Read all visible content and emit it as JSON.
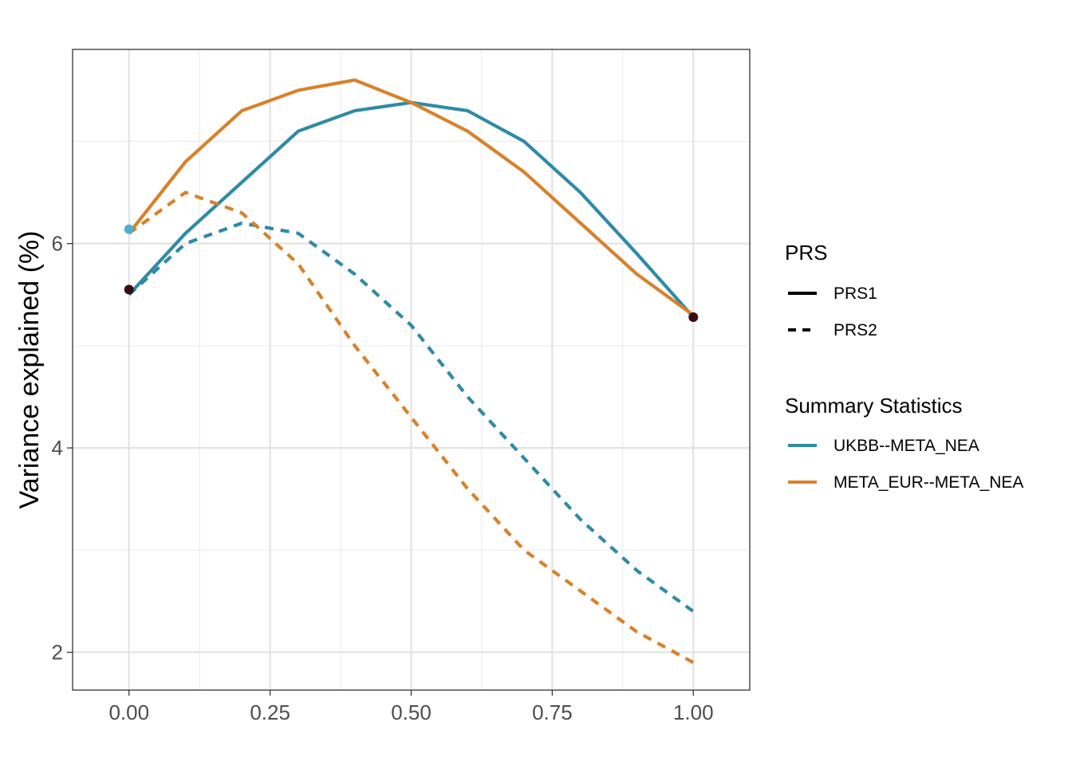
{
  "chart_data": {
    "type": "line",
    "title": "",
    "xlabel": "",
    "ylabel": "Variance explained (%)",
    "xlim": [
      -0.1,
      1.1
    ],
    "ylim": [
      1.63,
      7.9
    ],
    "x_ticks": [
      "0.00",
      "0.25",
      "0.50",
      "0.75",
      "1.00"
    ],
    "x_tick_values": [
      0,
      0.25,
      0.5,
      0.75,
      1.0
    ],
    "y_ticks": [
      "2",
      "4",
      "6"
    ],
    "y_tick_values": [
      2,
      4,
      6
    ],
    "grid": true,
    "legend_position": "right",
    "legends": {
      "linetype": {
        "title": "PRS",
        "entries": [
          {
            "label": "PRS1",
            "dash": "solid"
          },
          {
            "label": "PRS2",
            "dash": "dashed"
          }
        ]
      },
      "color": {
        "title": "Summary Statistics",
        "entries": [
          {
            "label": "UKBB--META_NEA",
            "color": "#2E8BA6"
          },
          {
            "label": "META_EUR--META_NEA",
            "color": "#D9812A"
          }
        ]
      }
    },
    "x": [
      0,
      0.1,
      0.2,
      0.3,
      0.4,
      0.5,
      0.6,
      0.7,
      0.8,
      0.9,
      1.0
    ],
    "series": [
      {
        "stats": "UKBB--META_NEA",
        "prs": "PRS1",
        "color": "#2E8BA6",
        "dash": "solid",
        "values": [
          5.5,
          6.1,
          6.6,
          7.1,
          7.3,
          7.38,
          7.3,
          7.0,
          6.5,
          5.9,
          5.28
        ]
      },
      {
        "stats": "META_EUR--META_NEA",
        "prs": "PRS1",
        "color": "#D9812A",
        "dash": "solid",
        "values": [
          6.1,
          6.8,
          7.3,
          7.5,
          7.6,
          7.38,
          7.1,
          6.7,
          6.2,
          5.7,
          5.3
        ]
      },
      {
        "stats": "UKBB--META_NEA",
        "prs": "PRS2",
        "color": "#2E8BA6",
        "dash": "dashed",
        "values": [
          5.5,
          6.0,
          6.2,
          6.1,
          5.7,
          5.2,
          4.5,
          3.9,
          3.3,
          2.8,
          2.4
        ]
      },
      {
        "stats": "META_EUR--META_NEA",
        "prs": "PRS2",
        "color": "#D9812A",
        "dash": "dashed",
        "values": [
          6.1,
          6.5,
          6.3,
          5.8,
          5.0,
          4.3,
          3.6,
          3.0,
          2.6,
          2.2,
          1.9
        ]
      }
    ],
    "points": [
      {
        "x": 0,
        "y": 6.14,
        "color": "#4FAFD0"
      },
      {
        "x": 0,
        "y": 5.55,
        "color": "#3A0A0F"
      },
      {
        "x": 1.0,
        "y": 5.28,
        "color": "#3A0A0F"
      }
    ]
  }
}
